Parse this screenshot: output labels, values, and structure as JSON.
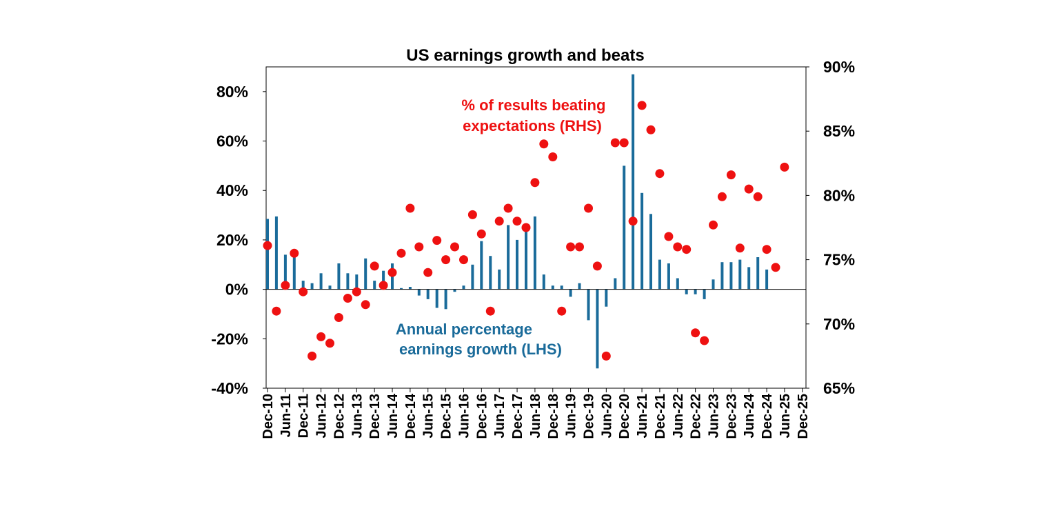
{
  "colors": {
    "bars": "#1a6b9a",
    "dots": "#ee1111",
    "axis": "#000000"
  },
  "chart_data": {
    "type": "bar+scatter",
    "title": "US earnings growth and beats",
    "categories": [
      "Dec-10",
      "Mar-11",
      "Jun-11",
      "Sep-11",
      "Dec-11",
      "Mar-12",
      "Jun-12",
      "Sep-12",
      "Dec-12",
      "Mar-13",
      "Jun-13",
      "Sep-13",
      "Dec-13",
      "Mar-14",
      "Jun-14",
      "Sep-14",
      "Dec-14",
      "Mar-15",
      "Jun-15",
      "Sep-15",
      "Dec-15",
      "Mar-16",
      "Jun-16",
      "Sep-16",
      "Dec-16",
      "Mar-17",
      "Jun-17",
      "Sep-17",
      "Dec-17",
      "Mar-18",
      "Jun-18",
      "Sep-18",
      "Dec-18",
      "Mar-19",
      "Jun-19",
      "Sep-19",
      "Dec-19",
      "Mar-20",
      "Jun-20",
      "Sep-20",
      "Dec-20",
      "Mar-21",
      "Jun-21",
      "Sep-21",
      "Dec-21",
      "Mar-22",
      "Jun-22",
      "Sep-22",
      "Dec-22",
      "Mar-23",
      "Jun-23",
      "Sep-23",
      "Dec-23",
      "Mar-24",
      "Jun-24",
      "Sep-24",
      "Dec-24",
      "Mar-25",
      "Jun-25",
      "Sep-25",
      "Dec-25"
    ],
    "x_tick_labels": [
      "Dec-10",
      "Jun-11",
      "Dec-11",
      "Jun-12",
      "Dec-12",
      "Jun-13",
      "Dec-13",
      "Jun-14",
      "Dec-14",
      "Jun-15",
      "Dec-15",
      "Jun-16",
      "Dec-16",
      "Jun-17",
      "Dec-17",
      "Jun-18",
      "Dec-18",
      "Jun-19",
      "Dec-19",
      "Jun-20",
      "Dec-20",
      "Jun-21",
      "Dec-21",
      "Jun-22",
      "Dec-22",
      "Jun-23",
      "Dec-23",
      "Jun-24",
      "Dec-24",
      "Jun-25",
      "Dec-25"
    ],
    "series": [
      {
        "name": "Annual percentage earnings growth (LHS)",
        "type": "bar",
        "axis": "left",
        "values": [
          28.5,
          29.5,
          14,
          14.5,
          3.5,
          2.5,
          6.5,
          1.5,
          10.5,
          6.5,
          6,
          12.5,
          3.5,
          7.5,
          10.5,
          0.5,
          1,
          -2.5,
          -4,
          -7.5,
          -8,
          -1,
          1.5,
          10,
          19.5,
          13.5,
          8,
          26,
          20,
          25.5,
          29.5,
          6,
          1.5,
          1.5,
          -3,
          2.5,
          -12.5,
          -32,
          -7,
          4.5,
          50,
          87,
          39,
          30.5,
          12,
          10.5,
          4.5,
          -2,
          -2,
          -4,
          4,
          11,
          11,
          12,
          9,
          13,
          8,
          null,
          null,
          null,
          null
        ]
      },
      {
        "name": "% of results beating expectations (RHS)",
        "type": "scatter",
        "axis": "right",
        "values": [
          76.1,
          71,
          73,
          75.5,
          72.5,
          67.5,
          69,
          68.5,
          70.5,
          72,
          72.5,
          71.5,
          74.5,
          73,
          74,
          75.5,
          79,
          76,
          74,
          76.5,
          75,
          76,
          75,
          78.5,
          77,
          71,
          78,
          79,
          78,
          77.5,
          81,
          84,
          83,
          71,
          76,
          76,
          79,
          74.5,
          67.5,
          84.1,
          84.1,
          78,
          87,
          85.1,
          81.7,
          76.8,
          76,
          75.8,
          69.3,
          68.7,
          77.7,
          79.9,
          81.6,
          75.9,
          80.5,
          79.9,
          75.8,
          74.4,
          82.2,
          null,
          null
        ]
      }
    ],
    "y_left": {
      "min": -40,
      "max": 90,
      "ticks": [
        -40,
        -20,
        0,
        20,
        40,
        60,
        80
      ],
      "tick_labels": [
        "-40%",
        "-20%",
        "0%",
        "20%",
        "40%",
        "60%",
        "80%"
      ]
    },
    "y_right": {
      "min": 65,
      "max": 90,
      "ticks": [
        65,
        70,
        75,
        80,
        85,
        90
      ],
      "tick_labels": [
        "65%",
        "70%",
        "75%",
        "80%",
        "85%",
        "90%"
      ]
    },
    "annotations": [
      {
        "id": "beats",
        "lines": [
          "% of results beating",
          "expectations (RHS)"
        ]
      },
      {
        "id": "growth",
        "lines": [
          "Annual percentage",
          "earnings growth (LHS)"
        ]
      }
    ],
    "grid": false,
    "legend": "none"
  }
}
